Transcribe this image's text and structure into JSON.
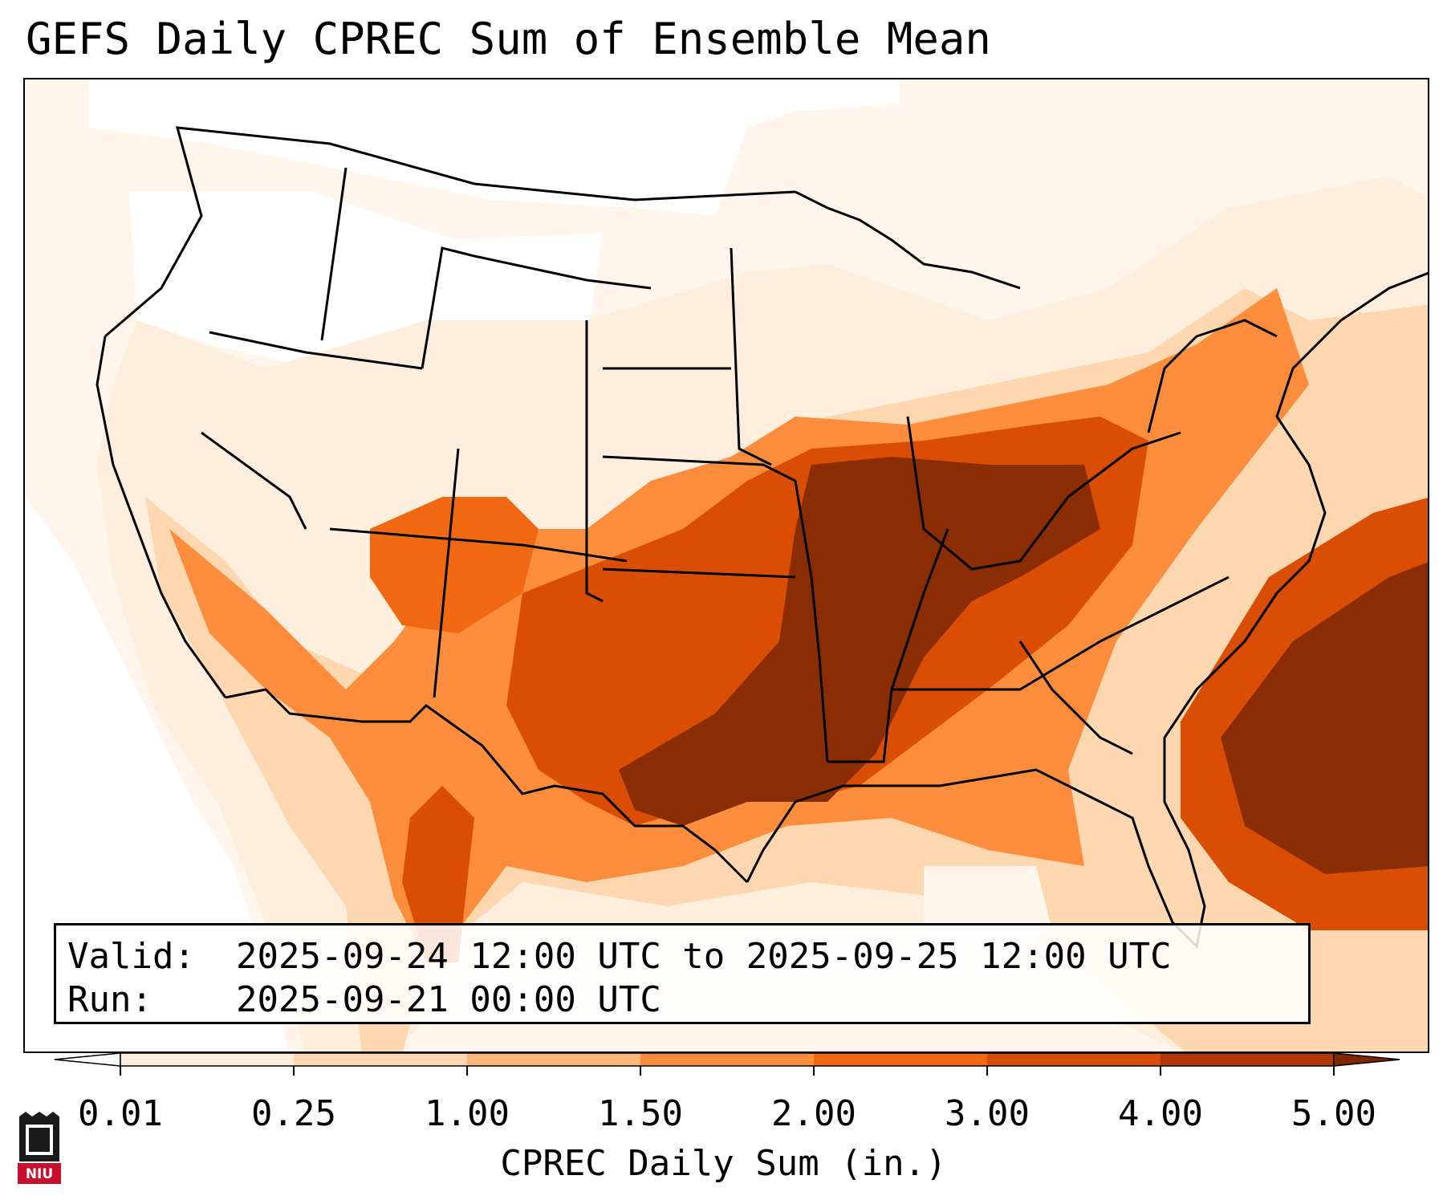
{
  "title": "GEFS Daily CPREC Sum of Ensemble Mean",
  "info": {
    "valid_label": "Valid:",
    "valid_value": "2025-09-24 12:00 UTC to 2025-09-25 12:00 UTC",
    "run_label": "Run:",
    "run_value": "2025-09-21 00:00 UTC"
  },
  "colorbar": {
    "label": "CPREC Daily Sum (in.)",
    "ticks": [
      "0.01",
      "0.25",
      "1.00",
      "1.50",
      "2.00",
      "3.00",
      "4.00",
      "5.00"
    ],
    "colors": [
      "#fdeedd",
      "#fdd7b0",
      "#fdb77b",
      "#fb8d3c",
      "#f06912",
      "#d94d04",
      "#b03903",
      "#8a2c04"
    ],
    "under_color": "#ffffff",
    "over_color": "#7f2704"
  },
  "logo": {
    "text": "NIU",
    "color": "#c8102e"
  },
  "map": {
    "region": "Contiguous United States, northern Mexico, Gulf of Mexico, western Atlantic",
    "heavy_precip_regions": [
      "Lower Mississippi Valley",
      "Ohio Valley",
      "Tennessee Valley",
      "Western Atlantic off Southeast coast"
    ]
  }
}
